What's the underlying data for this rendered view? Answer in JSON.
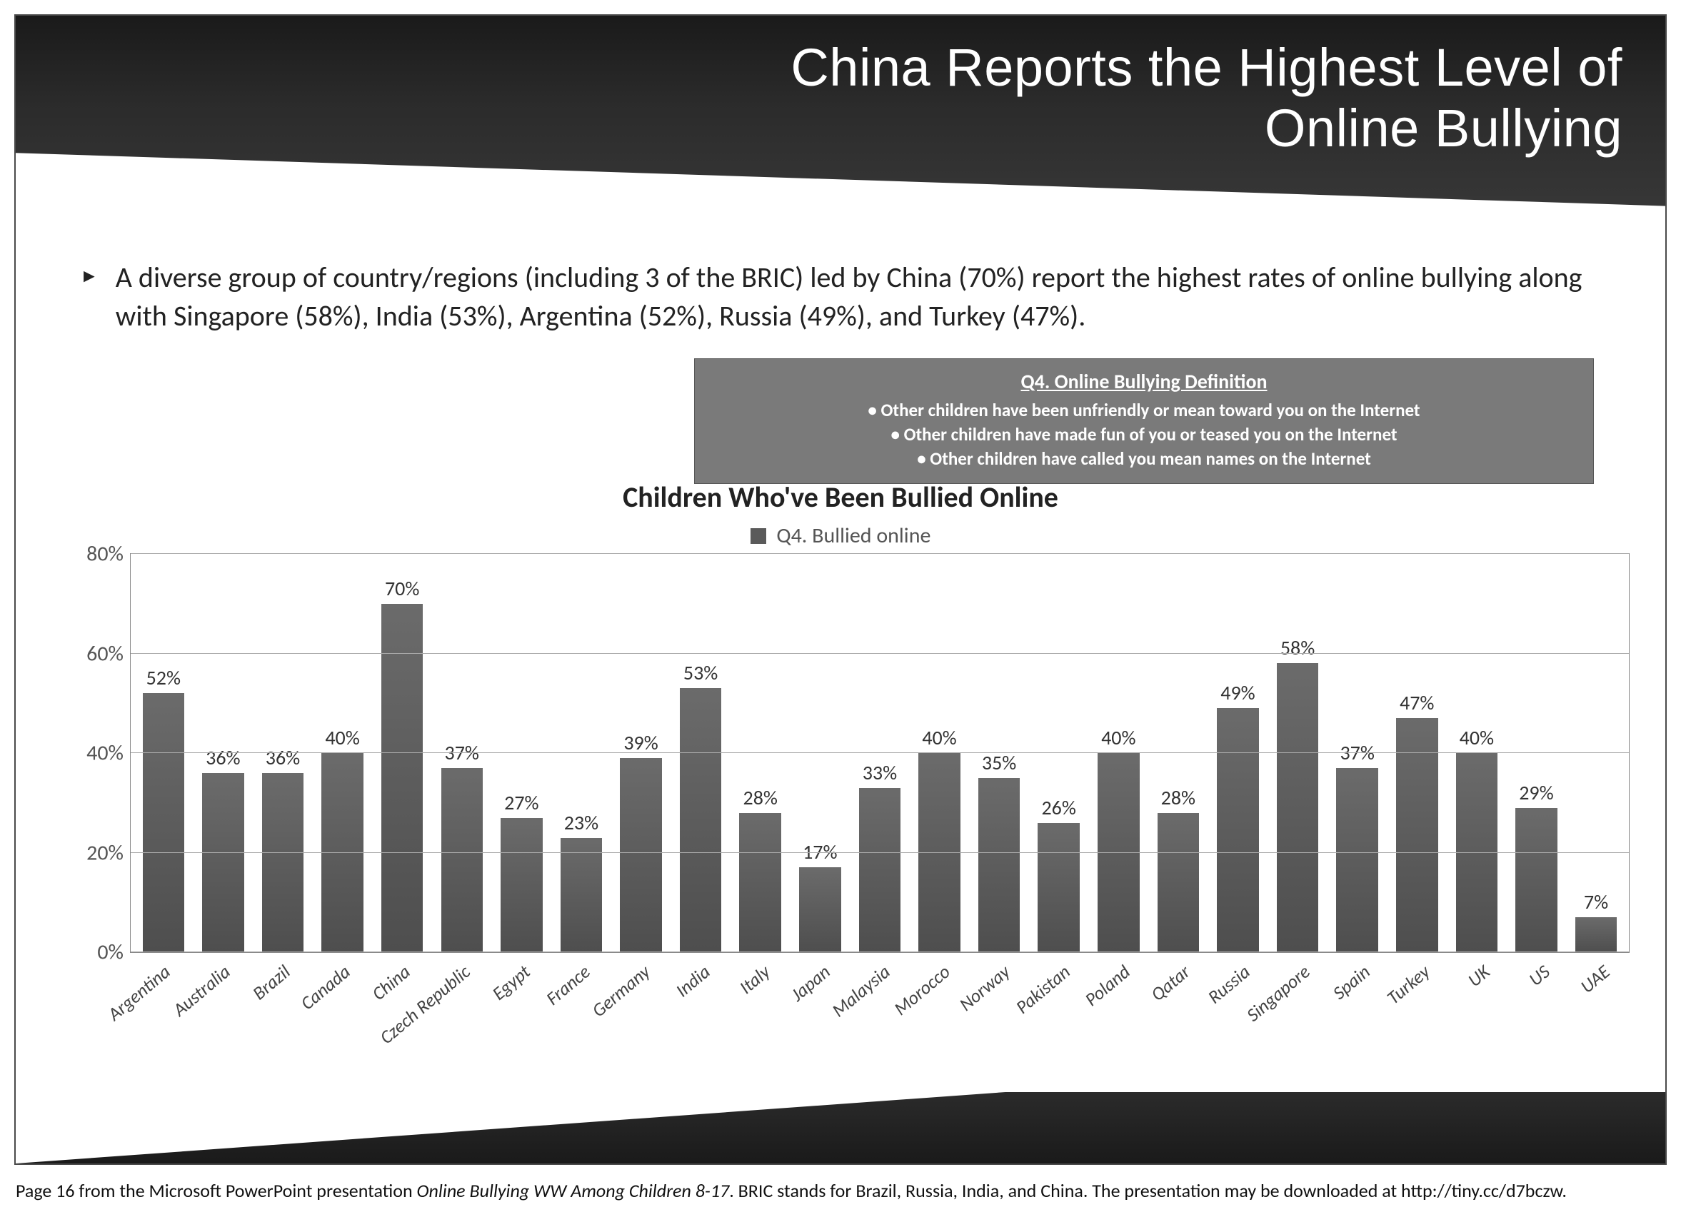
{
  "header": {
    "title_line1": "China Reports the Highest Level of",
    "title_line2": "Online Bullying"
  },
  "bullet": {
    "text": "A diverse group of country/regions (including 3 of the BRIC) led by China (70%) report the highest rates of online bullying along with Singapore (58%),  India (53%), Argentina (52%), Russia (49%), and Turkey (47%)."
  },
  "definition": {
    "title": "Q4. Online Bullying Definition",
    "lines": [
      "Other children have been unfriendly or mean toward you on the Internet",
      "Other children have made fun of you or teased you on the Internet",
      "Other children have called you mean names on the Internet"
    ]
  },
  "chart": {
    "title": "Children Who've Been Bullied Online",
    "legend_label": "Q4. Bullied online",
    "type": "bar",
    "ylim": [
      0,
      80
    ],
    "ytick_step": 20,
    "yticks": [
      "0%",
      "20%",
      "40%",
      "60%",
      "80%"
    ],
    "bar_color": "#5a5a5a",
    "bar_gradient_top": "#6b6b6b",
    "bar_gradient_bottom": "#4e4e4e",
    "grid_color": "#aaaaaa",
    "background_color": "#ffffff",
    "bar_width": 0.7,
    "label_fontsize": 28,
    "axis_fontsize": 30,
    "categories": [
      "Argentina",
      "Australia",
      "Brazil",
      "Canada",
      "China",
      "Czech Republic",
      "Egypt",
      "France",
      "Germany",
      "India",
      "Italy",
      "Japan",
      "Malaysia",
      "Morocco",
      "Norway",
      "Pakistan",
      "Poland",
      "Qatar",
      "Russia",
      "Singapore",
      "Spain",
      "Turkey",
      "UK",
      "US",
      "UAE"
    ],
    "values": [
      52,
      36,
      36,
      40,
      70,
      37,
      27,
      23,
      39,
      53,
      28,
      17,
      33,
      40,
      35,
      26,
      40,
      28,
      49,
      58,
      37,
      47,
      40,
      29,
      7
    ],
    "value_labels": [
      "52%",
      "36%",
      "36%",
      "40%",
      "70%",
      "37%",
      "27%",
      "23%",
      "39%",
      "53%",
      "28%",
      "17%",
      "33%",
      "40%",
      "35%",
      "26%",
      "40%",
      "28%",
      "49%",
      "58%",
      "37%",
      "47%",
      "40%",
      "29%",
      "7%"
    ]
  },
  "caption": {
    "prefix": "Page 16 from the Microsoft PowerPoint presentation ",
    "italic": "Online Bullying WW Among Children 8-17",
    "suffix": ".  BRIC stands for Brazil, Russia, India, and China. The presentation may be downloaded at http://tiny.cc/d7bczw."
  }
}
